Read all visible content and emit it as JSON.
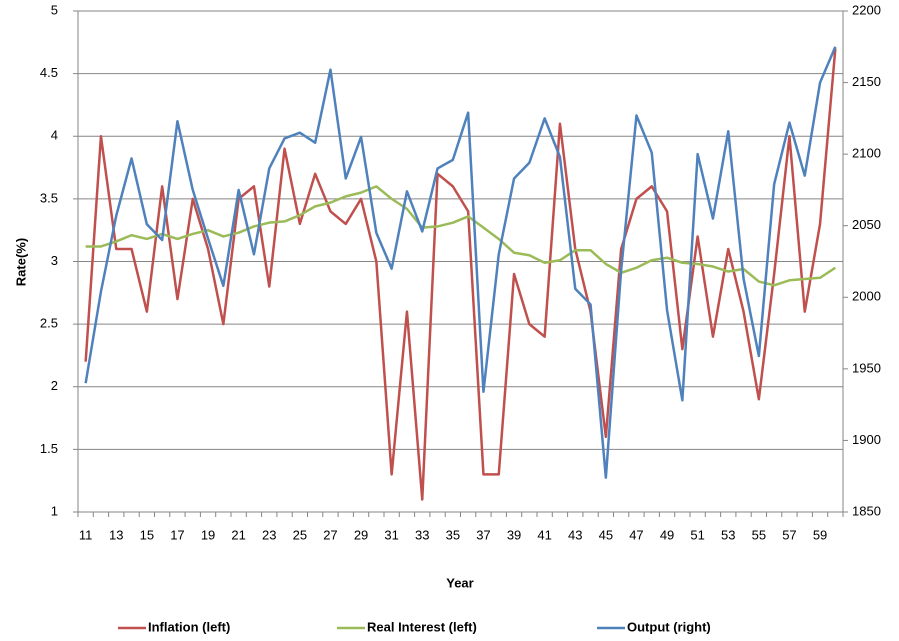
{
  "chart_data": {
    "type": "line",
    "x_label": "Year",
    "y_label": "Rate(%)",
    "categories": [
      "11",
      null,
      "13",
      null,
      "15",
      null,
      "17",
      null,
      "19",
      null,
      "21",
      null,
      "23",
      null,
      "25",
      null,
      "27",
      null,
      "29",
      null,
      "31",
      null,
      "33",
      null,
      "35",
      null,
      "37",
      null,
      "39",
      null,
      "41",
      null,
      "43",
      null,
      "45",
      null,
      "47",
      null,
      "49",
      null,
      "51",
      null,
      "53",
      null,
      "55",
      null,
      "57",
      null,
      "59",
      null
    ],
    "series": [
      {
        "name": "Inflation (left)",
        "color": "#c0504d",
        "axis": "y",
        "values": [
          2.2,
          4.0,
          3.1,
          3.1,
          2.6,
          3.6,
          2.7,
          3.5,
          3.1,
          2.5,
          3.5,
          3.6,
          2.8,
          3.9,
          3.3,
          3.7,
          3.4,
          3.3,
          3.5,
          3.0,
          1.3,
          2.6,
          1.1,
          3.7,
          3.6,
          3.4,
          1.3,
          1.3,
          2.9,
          2.5,
          2.4,
          4.1,
          3.1,
          2.6,
          1.6,
          3.1,
          3.5,
          3.6,
          3.4,
          2.3,
          3.2,
          2.4,
          3.1,
          2.6,
          1.9,
          2.9,
          4.0,
          2.6,
          3.3,
          4.7
        ]
      },
      {
        "name": "Real Interest (left)",
        "color": "#9bbb59",
        "axis": "y",
        "values": [
          3.12,
          3.12,
          3.16,
          3.21,
          3.18,
          3.22,
          3.18,
          3.22,
          3.25,
          3.2,
          3.23,
          3.28,
          3.31,
          3.32,
          3.37,
          3.44,
          3.47,
          3.52,
          3.55,
          3.6,
          3.5,
          3.42,
          3.27,
          3.28,
          3.31,
          3.36,
          3.27,
          3.18,
          3.07,
          3.05,
          2.99,
          3.01,
          3.09,
          3.09,
          2.98,
          2.91,
          2.95,
          3.01,
          3.03,
          2.99,
          2.98,
          2.96,
          2.92,
          2.94,
          2.84,
          2.81,
          2.85,
          2.86,
          2.87,
          2.95
        ]
      },
      {
        "name": "Output (right)",
        "color": "#4f81bd",
        "axis": "y2",
        "values": [
          1940,
          2004,
          2057,
          2097,
          2051,
          2040,
          2123,
          2075,
          2041,
          2008,
          2075,
          2030,
          2090,
          2111,
          2115,
          2108,
          2159,
          2083,
          2112,
          2045,
          2020,
          2074,
          2046,
          2090,
          2096,
          2129,
          1934,
          2030,
          2083,
          2094,
          2125,
          2098,
          2006,
          1995,
          1874,
          2019,
          2127,
          2101,
          1991,
          1928,
          2100,
          2055,
          2116,
          2013,
          1959,
          2079,
          2122,
          2085,
          2150,
          2175
        ]
      }
    ],
    "ylim": [
      1,
      5
    ],
    "yticks": [
      1,
      1.5,
      2,
      2.5,
      3,
      3.5,
      4,
      4.5,
      5
    ],
    "y2lim": [
      1850,
      2200
    ],
    "y2ticks": [
      1850,
      1900,
      1950,
      2000,
      2050,
      2100,
      2150,
      2200
    ],
    "grid": true,
    "legend": "bottom"
  }
}
